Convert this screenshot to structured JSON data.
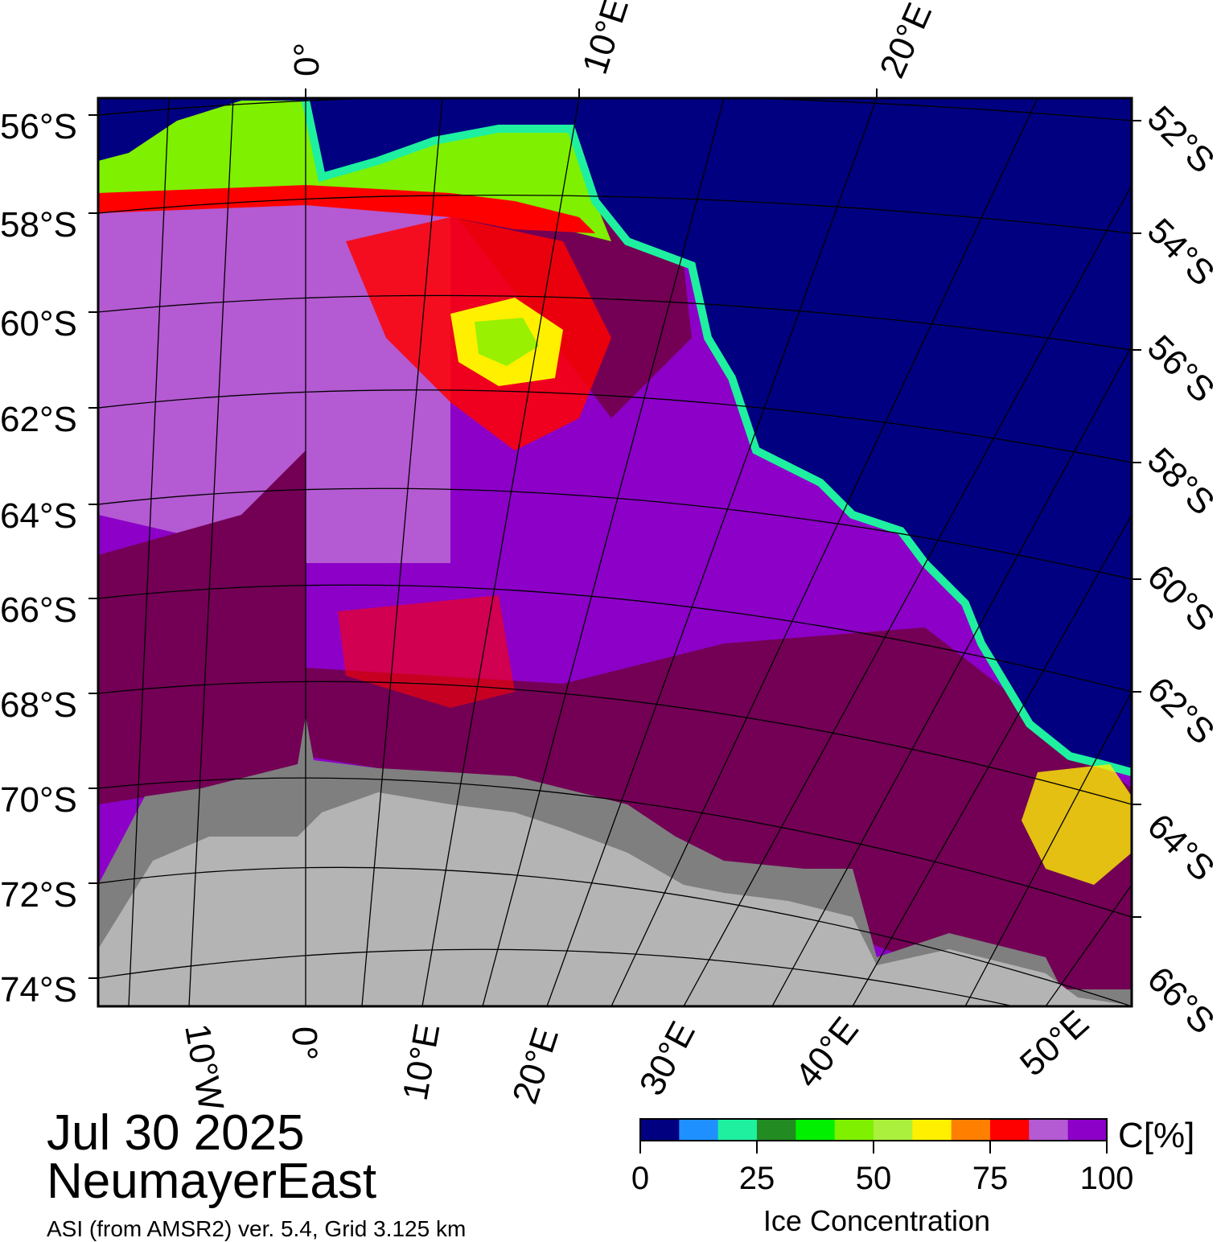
{
  "map": {
    "title_date": "Jul 30 2025",
    "region_name": "NeumayerEast",
    "source_line": "ASI (from AMSR2) ver. 5.4,  Grid 3.125 km",
    "top_lon_labels": [
      "0°",
      "10°E",
      "20°E"
    ],
    "bottom_lon_labels": [
      "10°W",
      "0°",
      "10°E",
      "20°E",
      "30°E",
      "40°E",
      "50°E"
    ],
    "left_lat_labels": [
      "56°S",
      "58°S",
      "60°S",
      "62°S",
      "64°S",
      "66°S",
      "68°S",
      "70°S",
      "72°S",
      "74°S"
    ],
    "right_lat_labels": [
      "52°S",
      "54°S",
      "56°S",
      "58°S",
      "60°S",
      "62°S",
      "64°S",
      "66°S"
    ],
    "colors": {
      "ocean": "#000080",
      "land_ice": "#b4b4b4",
      "ice_shelf": "#7f7f7f",
      "ice_full": "#730055",
      "ice_high": "#8c00c8",
      "ice_mid": "#b45ad2"
    }
  },
  "colorbar": {
    "title": "C[%]",
    "axis_label": "Ice Concentration",
    "tick_labels": [
      "0",
      "25",
      "50",
      "75",
      "100"
    ],
    "colors": [
      "#000080",
      "#1e90ff",
      "#1ef0a0",
      "#228b22",
      "#00f000",
      "#7ff000",
      "#aaf03c",
      "#fff000",
      "#ff8000",
      "#ff0000",
      "#b45ad2",
      "#8c00c8"
    ]
  }
}
